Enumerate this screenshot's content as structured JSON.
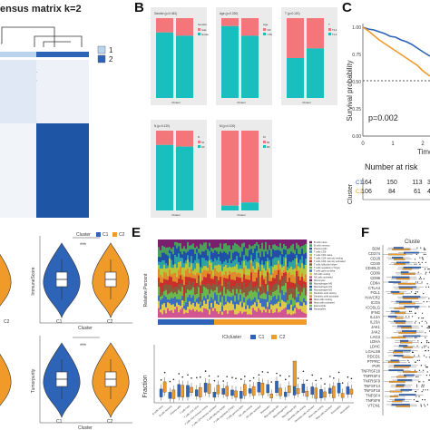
{
  "panels": {
    "B": "B",
    "C": "C",
    "E": "E",
    "F": "F"
  },
  "panel_a": {
    "title_fragment": "ensus matrix k=2",
    "legend": [
      "1",
      "2"
    ]
  },
  "panel_b": {
    "plots": [
      {
        "title": "Gender (p=0.461)",
        "legend_title": "Gender",
        "legend": [
          "male",
          "female"
        ]
      },
      {
        "title": "Age (p=0.230)",
        "legend_title": "Age",
        "legend": [
          ">60",
          "<=60"
        ]
      },
      {
        "title": "T (p=0.120)",
        "legend_title": "T",
        "legend": [
          "T3-4",
          "T1-2"
        ]
      },
      {
        "title": "N (p=0.120)",
        "legend_title": "N",
        "legend": [
          "N1",
          "N0"
        ]
      },
      {
        "title": "M (p=0.100)",
        "legend_title": "M",
        "legend": [
          "M1",
          "M0"
        ]
      }
    ],
    "x_label": "Cluster"
  },
  "panel_c": {
    "y_label": "Survival probability",
    "x_label": "Time(",
    "pvalue": "p=0.002",
    "x_ticks": [
      "0",
      "1",
      "2"
    ],
    "y_ticks": [
      "0.00",
      "0.25",
      "0.50",
      "0.75",
      "1.00"
    ],
    "risk_title": "Number at risk",
    "risk_axis": "Cluster",
    "risk_rows": [
      {
        "label": "C1",
        "values": [
          "164",
          "150",
          "113",
          "3"
        ]
      },
      {
        "label": "C2",
        "values": [
          "106",
          "84",
          "61",
          "4"
        ]
      }
    ]
  },
  "panel_d": {
    "legend_title": "Cluster",
    "legend": [
      "C1",
      "C2"
    ],
    "y_labels": [
      "ImmuneScore",
      "Tumorpurity"
    ],
    "x_label": "Cluster",
    "x_ticks": [
      "C1",
      "C2"
    ],
    "signif": "***"
  },
  "panel_e": {
    "y_label_top": "Relative Percent",
    "y_label_bottom": "Fraction",
    "legend_title": "ICIcluster",
    "legend": [
      "C1",
      "C2"
    ],
    "cluster_bar": [
      "C1",
      "C2"
    ],
    "cell_types": [
      "B cells naive",
      "B cells memory",
      "Plasma cells",
      "T cells CD8",
      "T cells CD4 naive",
      "T cells CD4 memory resting",
      "T cells CD4 memory activated",
      "T cells follicular helper",
      "T cells regulatory (Tregs)",
      "T cells gamma delta",
      "NK cells resting",
      "NK cells activated",
      "Monocytes",
      "Macrophages M0",
      "Macrophages M1",
      "Macrophages M2",
      "Dendritic cells resting",
      "Dendritic cells activated",
      "Mast cells resting",
      "Mast cells activated",
      "Eosinophils",
      "Neutrophils"
    ],
    "bar_colors": [
      "#7a1f6e",
      "#4aa05a",
      "#1f4fa8",
      "#2ea2a2",
      "#b7c73c",
      "#e18a2c",
      "#c9302c",
      "#8a5a3c",
      "#6bb84e",
      "#3a6fc0",
      "#e0c94a",
      "#d05590"
    ]
  },
  "panel_f": {
    "title": "Cluste",
    "genes": [
      "B2M",
      "CD274",
      "CD28",
      "CD40",
      "CD40LG",
      "CD80",
      "CD86",
      "CD8A",
      "CTLA4",
      "FGL1",
      "HAVCR2",
      "ICOS",
      "ICOSLG",
      "IFNG",
      "IL12A",
      "IL23A",
      "JAK1",
      "JAK2",
      "LAG3",
      "LDHA",
      "LDHC",
      "LGALS9",
      "PDCD1",
      "PTPRC",
      "PVR",
      "TNFRSF18",
      "TNFRSF4",
      "TNFRSF9",
      "TNFSF14",
      "TNFSF18",
      "TNFSF4",
      "TNFSF9",
      "VTCN1"
    ]
  },
  "colors": {
    "salmon": "#f4767a",
    "teal": "#19bfbf",
    "blue": "#2e64b8",
    "orange": "#f09a2a",
    "heat_dark": "#1b4f9a",
    "heat_light": "#e8eef7"
  }
}
